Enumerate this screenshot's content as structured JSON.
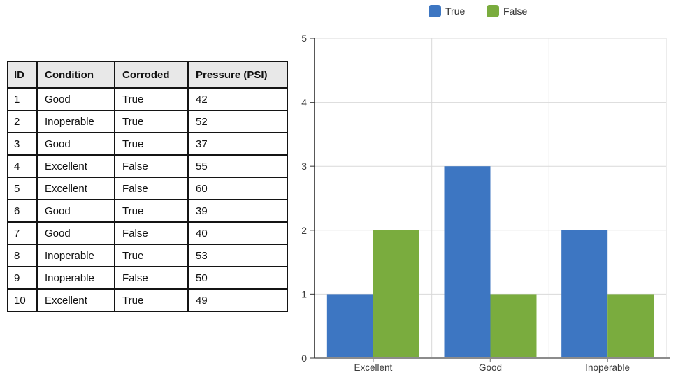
{
  "table": {
    "headers": [
      "ID",
      "Condition",
      "Corroded",
      "Pressure (PSI)"
    ],
    "rows": [
      [
        "1",
        "Good",
        "True",
        "42"
      ],
      [
        "2",
        "Inoperable",
        "True",
        "52"
      ],
      [
        "3",
        "Good",
        "True",
        "37"
      ],
      [
        "4",
        "Excellent",
        "False",
        "55"
      ],
      [
        "5",
        "Excellent",
        "False",
        "60"
      ],
      [
        "6",
        "Good",
        "True",
        "39"
      ],
      [
        "7",
        "Good",
        "False",
        "40"
      ],
      [
        "8",
        "Inoperable",
        "True",
        "53"
      ],
      [
        "9",
        "Inoperable",
        "False",
        "50"
      ],
      [
        "10",
        "Excellent",
        "True",
        "49"
      ]
    ],
    "header_bg": "#e8e8e8",
    "border_color": "#141414"
  },
  "chart_data": {
    "type": "bar",
    "categories": [
      "Excellent",
      "Good",
      "Inoperable"
    ],
    "series": [
      {
        "name": "True",
        "color": "#3d76c2",
        "values": [
          1,
          3,
          2
        ]
      },
      {
        "name": "False",
        "color": "#7aac3e",
        "values": [
          2,
          1,
          1
        ]
      }
    ],
    "title": "",
    "xlabel": "",
    "ylabel": "",
    "ylim": [
      0,
      5
    ],
    "yticks": [
      0,
      1,
      2,
      3,
      4,
      5
    ],
    "grid": true,
    "legend_position": "top",
    "grid_color": "#d9d9d9",
    "yaxis_color": "#2f2f2f",
    "xaxis_color": "#8c8c8c"
  }
}
